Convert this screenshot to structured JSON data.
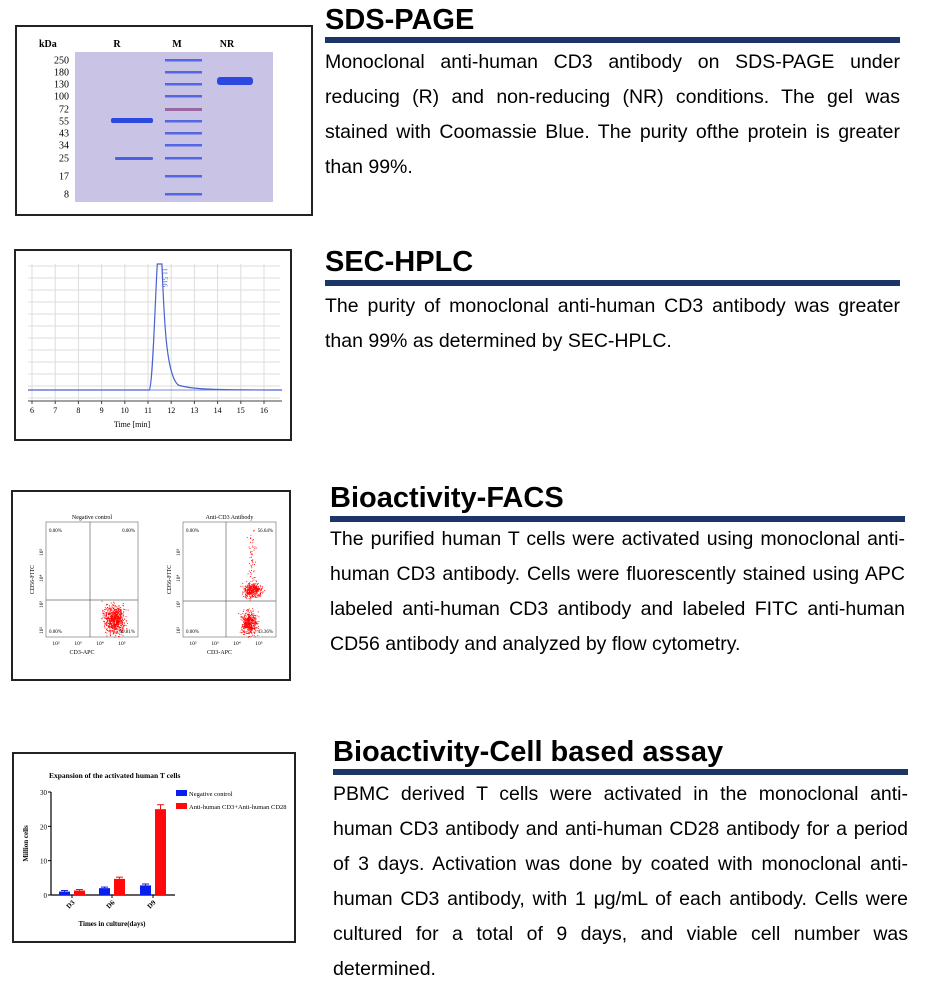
{
  "sections": [
    {
      "title": "SDS-PAGE",
      "text": "Monoclonal anti-human CD3 antibody on SDS-PAGE under reducing (R) and non-reducing (NR) conditions. The gel was stained with Coomassie Blue. The purity ofthe protein is greater than 99%."
    },
    {
      "title": "SEC-HPLC",
      "text": "The purity of monoclonal anti-human CD3 antibody was greater than 99% as determined by SEC-HPLC."
    },
    {
      "title": "Bioactivity-FACS",
      "text": "The purified human T cells were activated using monoclonal anti-human CD3 antibody. Cells were fluorescently stained using APC labeled anti-human CD3 antibody and labeled FITC anti-human CD56 antibody and analyzed by flow cytometry."
    },
    {
      "title": "Bioactivity-Cell based assay",
      "text": "PBMC derived T cells were activated in the monoclonal anti-human CD3 antibody and anti-human CD28 antibody for a period of 3 days. Activation was done by coated with monoclonal anti-human CD3 antibody, with 1 μg/mL of each antibody. Cells were cultured for a total of 9 days, and viable cell number was determined."
    }
  ],
  "gel": {
    "unit": "kDa",
    "lanes": [
      "R",
      "M",
      "NR"
    ],
    "markers": [
      "250",
      "180",
      "130",
      "100",
      "72",
      "55",
      "43",
      "34",
      "25",
      "17",
      "8"
    ],
    "colors": {
      "gel": "#c9c3e6",
      "band": "#2b48e0",
      "marker72": "#8a4a8a"
    }
  },
  "hplc": {
    "peak_label": "11.516",
    "x_ticks": [
      "6",
      "7",
      "8",
      "9",
      "10",
      "11",
      "12",
      "13",
      "14",
      "15",
      "16"
    ],
    "xlabel": "Time [min]",
    "line_color": "#4a62d0"
  },
  "facs": {
    "plots": [
      {
        "title": "Negative control",
        "ylabel": "CD56-FITC",
        "xlabel": "CD3-APC",
        "q": [
          "0.00%",
          "0.00%",
          "0.00%",
          "99.81%"
        ]
      },
      {
        "title": "Anti-CD3 Antibody",
        "ylabel": "CD56-FITC",
        "xlabel": "CD3-APC",
        "q": [
          "0.00%",
          "56.64%",
          "0.00%",
          "43.36%"
        ]
      }
    ],
    "ticks": [
      "10²",
      "10³",
      "10⁴",
      "10⁵"
    ]
  },
  "chart_data": {
    "type": "bar",
    "title": "Expansion of the activated human T cells",
    "xlabel": "Times in culture(days)",
    "ylabel": "Million cells",
    "categories": [
      "D3",
      "D6",
      "D9"
    ],
    "ylim": [
      0,
      30
    ],
    "yticks": [
      "0",
      "10",
      "20",
      "30"
    ],
    "series": [
      {
        "name": "Negative control",
        "color": "#0b1ef0",
        "values": [
          1.0,
          2.0,
          2.8
        ],
        "errors": [
          0.3,
          0.3,
          0.4
        ]
      },
      {
        "name": "Anti-human CD3+Anti-human CD28",
        "color": "#ff0a0a",
        "values": [
          1.3,
          4.7,
          25.0
        ],
        "errors": [
          0.3,
          0.5,
          1.3
        ]
      }
    ]
  }
}
